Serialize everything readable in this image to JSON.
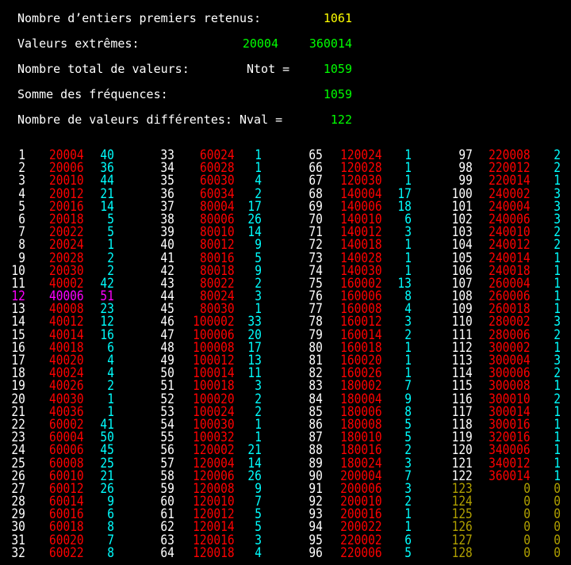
{
  "colors": {
    "background": "#000000",
    "label": "#ffffff",
    "yellow": "#ffff00",
    "green": "#00ff00",
    "red": "#ff0000",
    "cyan": "#00ffff",
    "magenta": "#ff00ff",
    "olive": "#b0a000"
  },
  "header": {
    "line1": {
      "label": "Nombre d’entiers premiers retenus:",
      "value": "1061"
    },
    "line2": {
      "label": "Valeurs extrêmes:",
      "min": "20004",
      "max": "360014"
    },
    "line3": {
      "label": "Nombre total de valeurs:",
      "symbol": "Ntot =",
      "value": "1059"
    },
    "line4": {
      "label": "Somme des fréquences:",
      "value": "1059"
    },
    "line5": {
      "label": "Nombre de valeurs différentes:",
      "symbol": "Nval =",
      "value": "122"
    }
  },
  "columns": [
    {
      "rows": [
        [
          "1",
          "20004",
          "40"
        ],
        [
          "2",
          "20006",
          "36"
        ],
        [
          "3",
          "20010",
          "44"
        ],
        [
          "4",
          "20012",
          "21"
        ],
        [
          "5",
          "20016",
          "14"
        ],
        [
          "6",
          "20018",
          "5"
        ],
        [
          "7",
          "20022",
          "5"
        ],
        [
          "8",
          "20024",
          "1"
        ],
        [
          "9",
          "20028",
          "2"
        ],
        [
          "10",
          "20030",
          "2"
        ],
        [
          "11",
          "40002",
          "42"
        ],
        [
          "12",
          "40006",
          "51"
        ],
        [
          "13",
          "40008",
          "23"
        ],
        [
          "14",
          "40012",
          "12"
        ],
        [
          "15",
          "40014",
          "16"
        ],
        [
          "16",
          "40018",
          "6"
        ],
        [
          "17",
          "40020",
          "4"
        ],
        [
          "18",
          "40024",
          "4"
        ],
        [
          "19",
          "40026",
          "2"
        ],
        [
          "20",
          "40030",
          "1"
        ],
        [
          "21",
          "40036",
          "1"
        ],
        [
          "22",
          "60002",
          "41"
        ],
        [
          "23",
          "60004",
          "50"
        ],
        [
          "24",
          "60006",
          "45"
        ],
        [
          "25",
          "60008",
          "25"
        ],
        [
          "26",
          "60010",
          "21"
        ],
        [
          "27",
          "60012",
          "26"
        ],
        [
          "28",
          "60014",
          "9"
        ],
        [
          "29",
          "60016",
          "6"
        ],
        [
          "30",
          "60018",
          "8"
        ],
        [
          "31",
          "60020",
          "7"
        ],
        [
          "32",
          "60022",
          "8"
        ]
      ]
    },
    {
      "rows": [
        [
          "33",
          "60024",
          "1"
        ],
        [
          "34",
          "60028",
          "1"
        ],
        [
          "35",
          "60030",
          "4"
        ],
        [
          "36",
          "60034",
          "2"
        ],
        [
          "37",
          "80004",
          "17"
        ],
        [
          "38",
          "80006",
          "26"
        ],
        [
          "39",
          "80010",
          "14"
        ],
        [
          "40",
          "80012",
          "9"
        ],
        [
          "41",
          "80016",
          "5"
        ],
        [
          "42",
          "80018",
          "9"
        ],
        [
          "43",
          "80022",
          "2"
        ],
        [
          "44",
          "80024",
          "3"
        ],
        [
          "45",
          "80030",
          "1"
        ],
        [
          "46",
          "100002",
          "33"
        ],
        [
          "47",
          "100006",
          "20"
        ],
        [
          "48",
          "100008",
          "17"
        ],
        [
          "49",
          "100012",
          "13"
        ],
        [
          "50",
          "100014",
          "11"
        ],
        [
          "51",
          "100018",
          "3"
        ],
        [
          "52",
          "100020",
          "2"
        ],
        [
          "53",
          "100024",
          "2"
        ],
        [
          "54",
          "100030",
          "1"
        ],
        [
          "55",
          "100032",
          "1"
        ],
        [
          "56",
          "120002",
          "21"
        ],
        [
          "57",
          "120004",
          "14"
        ],
        [
          "58",
          "120006",
          "26"
        ],
        [
          "59",
          "120008",
          "9"
        ],
        [
          "60",
          "120010",
          "7"
        ],
        [
          "61",
          "120012",
          "5"
        ],
        [
          "62",
          "120014",
          "5"
        ],
        [
          "63",
          "120016",
          "3"
        ],
        [
          "64",
          "120018",
          "4"
        ]
      ]
    },
    {
      "rows": [
        [
          "65",
          "120024",
          "1"
        ],
        [
          "66",
          "120028",
          "1"
        ],
        [
          "67",
          "120030",
          "1"
        ],
        [
          "68",
          "140004",
          "17"
        ],
        [
          "69",
          "140006",
          "18"
        ],
        [
          "70",
          "140010",
          "6"
        ],
        [
          "71",
          "140012",
          "3"
        ],
        [
          "72",
          "140018",
          "1"
        ],
        [
          "73",
          "140028",
          "1"
        ],
        [
          "74",
          "140030",
          "1"
        ],
        [
          "75",
          "160002",
          "13"
        ],
        [
          "76",
          "160006",
          "8"
        ],
        [
          "77",
          "160008",
          "4"
        ],
        [
          "78",
          "160012",
          "3"
        ],
        [
          "79",
          "160014",
          "2"
        ],
        [
          "80",
          "160018",
          "1"
        ],
        [
          "81",
          "160020",
          "1"
        ],
        [
          "82",
          "160026",
          "1"
        ],
        [
          "83",
          "180002",
          "7"
        ],
        [
          "84",
          "180004",
          "9"
        ],
        [
          "85",
          "180006",
          "8"
        ],
        [
          "86",
          "180008",
          "5"
        ],
        [
          "87",
          "180010",
          "5"
        ],
        [
          "88",
          "180016",
          "2"
        ],
        [
          "89",
          "180024",
          "3"
        ],
        [
          "90",
          "200004",
          "7"
        ],
        [
          "91",
          "200006",
          "3"
        ],
        [
          "92",
          "200010",
          "2"
        ],
        [
          "93",
          "200016",
          "1"
        ],
        [
          "94",
          "200022",
          "1"
        ],
        [
          "95",
          "220002",
          "6"
        ],
        [
          "96",
          "220006",
          "5"
        ]
      ]
    },
    {
      "rows": [
        [
          "97",
          "220008",
          "2"
        ],
        [
          "98",
          "220012",
          "2"
        ],
        [
          "99",
          "220014",
          "1"
        ],
        [
          "100",
          "240002",
          "3"
        ],
        [
          "101",
          "240004",
          "3"
        ],
        [
          "102",
          "240006",
          "3"
        ],
        [
          "103",
          "240010",
          "2"
        ],
        [
          "104",
          "240012",
          "2"
        ],
        [
          "105",
          "240014",
          "1"
        ],
        [
          "106",
          "240018",
          "1"
        ],
        [
          "107",
          "260004",
          "1"
        ],
        [
          "108",
          "260006",
          "1"
        ],
        [
          "109",
          "260018",
          "1"
        ],
        [
          "110",
          "280002",
          "3"
        ],
        [
          "111",
          "280006",
          "2"
        ],
        [
          "112",
          "300002",
          "1"
        ],
        [
          "113",
          "300004",
          "3"
        ],
        [
          "114",
          "300006",
          "2"
        ],
        [
          "115",
          "300008",
          "1"
        ],
        [
          "116",
          "300010",
          "2"
        ],
        [
          "117",
          "300014",
          "1"
        ],
        [
          "118",
          "300016",
          "1"
        ],
        [
          "119",
          "320016",
          "1"
        ],
        [
          "120",
          "340006",
          "1"
        ],
        [
          "121",
          "340012",
          "1"
        ],
        [
          "122",
          "360014",
          "1"
        ],
        [
          "123",
          "0",
          "0"
        ],
        [
          "124",
          "0",
          "0"
        ],
        [
          "125",
          "0",
          "0"
        ],
        [
          "126",
          "0",
          "0"
        ],
        [
          "127",
          "0",
          "0"
        ],
        [
          "128",
          "0",
          "0"
        ]
      ]
    }
  ],
  "highlight_index": "12"
}
